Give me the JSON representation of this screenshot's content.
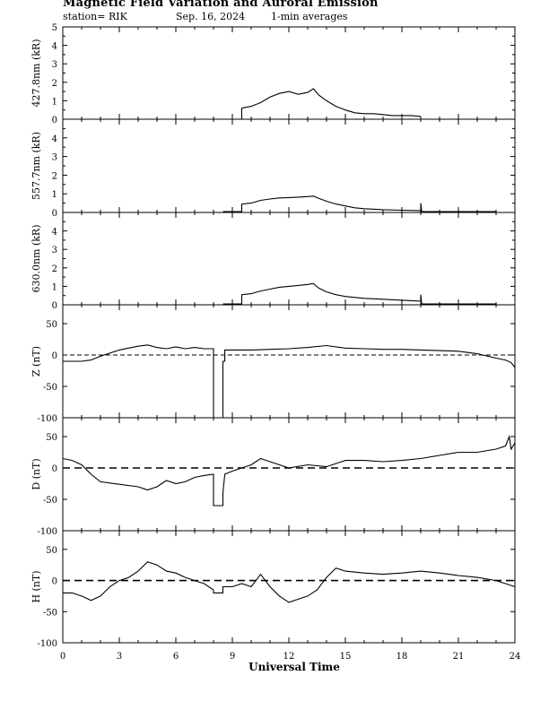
{
  "header": {
    "title": "Magnetic Field Variation and Auroral Emission",
    "station": "station= RIK",
    "date": "Sep. 16, 2024",
    "averaging": "1-min averages"
  },
  "chart_data": [
    {
      "type": "line",
      "ylabel": "427.8nm (kR)",
      "xlim": [
        0,
        24
      ],
      "ylim": [
        0,
        5
      ],
      "yticks": [
        0,
        1,
        2,
        3,
        4,
        5
      ],
      "x": [
        9.5,
        9.5,
        10.0,
        10.5,
        11.0,
        11.5,
        12.0,
        12.5,
        13.0,
        13.3,
        13.6,
        14.0,
        14.5,
        15.0,
        15.5,
        16.0,
        16.5,
        17.0,
        17.5,
        18.0,
        18.5,
        19.0
      ],
      "y": [
        0,
        0.6,
        0.7,
        0.9,
        1.2,
        1.4,
        1.5,
        1.35,
        1.45,
        1.65,
        1.3,
        1.0,
        0.7,
        0.5,
        0.35,
        0.3,
        0.3,
        0.25,
        0.2,
        0.2,
        0.2,
        0.15
      ]
    },
    {
      "type": "line",
      "ylabel": "557.7nm (kR)",
      "xlim": [
        0,
        24
      ],
      "ylim": [
        0,
        5
      ],
      "yticks": [
        0,
        1,
        2,
        3,
        4
      ],
      "x": [
        8.5,
        9.5,
        9.5,
        10.0,
        10.5,
        11.0,
        11.5,
        12.0,
        12.5,
        13.0,
        13.3,
        13.6,
        14.0,
        14.5,
        15.0,
        15.5,
        16.0,
        17.0,
        18.0,
        19.0,
        19.0,
        19.05,
        20.0,
        23.0
      ],
      "y": [
        0.05,
        0.05,
        0.45,
        0.5,
        0.65,
        0.72,
        0.78,
        0.8,
        0.82,
        0.85,
        0.88,
        0.75,
        0.6,
        0.45,
        0.35,
        0.25,
        0.2,
        0.15,
        0.12,
        0.1,
        0.5,
        0.05,
        0.05,
        0.05
      ]
    },
    {
      "type": "line",
      "ylabel": "630.0nm (kR)",
      "xlim": [
        0,
        24
      ],
      "ylim": [
        0,
        5
      ],
      "yticks": [
        0,
        1,
        2,
        3,
        4
      ],
      "x": [
        8.5,
        9.5,
        9.5,
        10.0,
        10.5,
        11.0,
        11.5,
        12.0,
        12.5,
        13.0,
        13.3,
        13.6,
        14.0,
        14.5,
        15.0,
        15.5,
        16.0,
        17.0,
        18.0,
        19.0,
        19.0,
        19.05,
        20.0,
        23.0
      ],
      "y": [
        0.05,
        0.05,
        0.55,
        0.6,
        0.75,
        0.85,
        0.95,
        1.0,
        1.05,
        1.1,
        1.15,
        0.9,
        0.7,
        0.55,
        0.45,
        0.4,
        0.35,
        0.3,
        0.25,
        0.2,
        0.55,
        0.05,
        0.05,
        0.05
      ]
    },
    {
      "type": "line",
      "ylabel": "Z (nT)",
      "xlim": [
        0,
        24
      ],
      "ylim": [
        -100,
        80
      ],
      "yticks": [
        -100,
        -50,
        0,
        50
      ],
      "baseline": 0,
      "x": [
        0,
        1,
        1.5,
        2,
        3,
        4,
        4.5,
        5,
        5.5,
        6,
        6.5,
        7,
        7.5,
        8.0,
        8.0,
        8.5,
        8.5,
        8.6,
        8.6,
        9,
        10,
        11,
        12,
        13,
        14,
        15,
        16,
        17,
        18,
        19,
        20,
        21,
        22,
        23,
        23.5,
        23.8,
        24
      ],
      "y": [
        -10,
        -10,
        -8,
        -2,
        8,
        14,
        16,
        12,
        10,
        13,
        10,
        12,
        10,
        10,
        -105,
        -105,
        -10,
        -10,
        8,
        8,
        8,
        9,
        10,
        12,
        15,
        11,
        10,
        9,
        9,
        8,
        7,
        6,
        2,
        -5,
        -8,
        -12,
        -20
      ]
    },
    {
      "type": "line",
      "ylabel": "D (nT)",
      "xlim": [
        0,
        24
      ],
      "ylim": [
        -100,
        80
      ],
      "yticks": [
        -100,
        -50,
        0,
        50
      ],
      "baseline": 0,
      "x": [
        0,
        0.5,
        1,
        1.5,
        2,
        3,
        4,
        4.5,
        5,
        5.5,
        6,
        6.5,
        7,
        7.5,
        8.0,
        8.0,
        8.5,
        8.5,
        8.6,
        9,
        9.5,
        10,
        10.5,
        11,
        11.5,
        12,
        13,
        14,
        15,
        16,
        17,
        18,
        19,
        20,
        21,
        22,
        23,
        23.5,
        23.7,
        23.8,
        24
      ],
      "y": [
        15,
        12,
        5,
        -10,
        -22,
        -26,
        -30,
        -35,
        -30,
        -20,
        -25,
        -22,
        -15,
        -12,
        -10,
        -60,
        -60,
        -40,
        -10,
        -5,
        0,
        5,
        15,
        10,
        5,
        0,
        5,
        2,
        12,
        12,
        10,
        12,
        15,
        20,
        25,
        25,
        30,
        35,
        50,
        30,
        40
      ]
    },
    {
      "type": "line",
      "ylabel": "H (nT)",
      "xlim": [
        0,
        24
      ],
      "ylim": [
        -100,
        80
      ],
      "yticks": [
        -100,
        -50,
        0,
        50
      ],
      "baseline": 0,
      "x": [
        0,
        0.5,
        1,
        1.5,
        2,
        2.5,
        3,
        3.5,
        4,
        4.5,
        5,
        5.5,
        6,
        6.5,
        7,
        7.5,
        8,
        8.0,
        8.5,
        8.5,
        9,
        9.5,
        10,
        10.5,
        11,
        11.5,
        12,
        12.5,
        13,
        13.5,
        14,
        14.5,
        15,
        16,
        17,
        18,
        19,
        20,
        21,
        22,
        23,
        23.5,
        24
      ],
      "y": [
        -20,
        -20,
        -25,
        -32,
        -25,
        -10,
        0,
        5,
        15,
        30,
        25,
        15,
        12,
        5,
        0,
        -5,
        -15,
        -20,
        -20,
        -10,
        -10,
        -5,
        -10,
        10,
        -10,
        -25,
        -35,
        -30,
        -25,
        -15,
        5,
        20,
        15,
        12,
        10,
        12,
        15,
        12,
        8,
        5,
        0,
        -5,
        -10
      ]
    }
  ],
  "x_axis": {
    "label": "Universal Time",
    "ticks": [
      0,
      3,
      6,
      9,
      12,
      15,
      18,
      21,
      24
    ],
    "minor_step": 1
  }
}
